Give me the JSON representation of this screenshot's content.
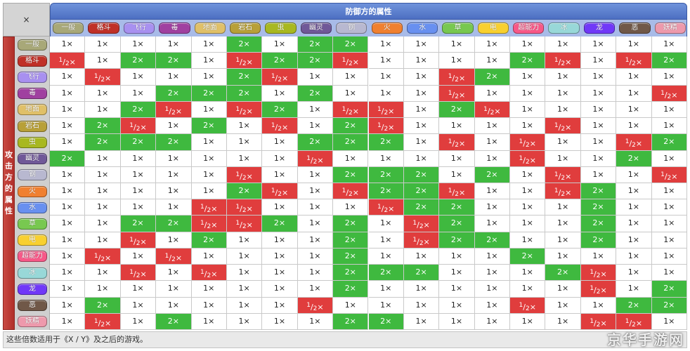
{
  "corner": {
    "label": "×"
  },
  "defender_title": "防御方的属性",
  "attacker_title": "攻击方的属性",
  "footer_note": "这些倍数适用于《X / Y》及之后的游戏。",
  "watermark": "京华手游网",
  "colors": {
    "super_effective": "#3fb93f",
    "not_very_effective": "#e03d3d",
    "no_effect": "#444444",
    "neutral": "#ffffff"
  },
  "types": [
    {
      "id": "normal",
      "name": "一般",
      "color": "#a8a878"
    },
    {
      "id": "fighting",
      "name": "格斗",
      "color": "#c03028"
    },
    {
      "id": "flying",
      "name": "飞行",
      "color": "#a890f0"
    },
    {
      "id": "poison",
      "name": "毒",
      "color": "#a040a0"
    },
    {
      "id": "ground",
      "name": "地面",
      "color": "#e0c068"
    },
    {
      "id": "rock",
      "name": "岩石",
      "color": "#b8a038"
    },
    {
      "id": "bug",
      "name": "虫",
      "color": "#a8b820"
    },
    {
      "id": "ghost",
      "name": "幽灵",
      "color": "#705898"
    },
    {
      "id": "steel",
      "name": "钢",
      "color": "#b8b8d0"
    },
    {
      "id": "fire",
      "name": "火",
      "color": "#f08030"
    },
    {
      "id": "water",
      "name": "水",
      "color": "#6890f0"
    },
    {
      "id": "grass",
      "name": "草",
      "color": "#78c850"
    },
    {
      "id": "electric",
      "name": "电",
      "color": "#f8d030"
    },
    {
      "id": "psychic",
      "name": "超能力",
      "color": "#f85888"
    },
    {
      "id": "ice",
      "name": "冰",
      "color": "#98d8d8"
    },
    {
      "id": "dragon",
      "name": "龙",
      "color": "#7038f8"
    },
    {
      "id": "dark",
      "name": "恶",
      "color": "#705848"
    },
    {
      "id": "fairy",
      "name": "妖精",
      "color": "#ee99ac"
    }
  ],
  "matrix": [
    [
      "1",
      "1",
      "1",
      "1",
      "1",
      "2",
      "1",
      "2",
      "2",
      "1",
      "1",
      "1",
      "1",
      "1",
      "1",
      "1",
      "1",
      "1"
    ],
    [
      "h",
      "1",
      "2",
      "2",
      "1",
      "h",
      "2",
      "2",
      "h",
      "1",
      "1",
      "1",
      "1",
      "2",
      "h",
      "1",
      "h",
      "2"
    ],
    [
      "1",
      "h",
      "1",
      "1",
      "1",
      "2",
      "h",
      "1",
      "1",
      "1",
      "1",
      "h",
      "2",
      "1",
      "1",
      "1",
      "1",
      "1"
    ],
    [
      "1",
      "1",
      "1",
      "2",
      "2",
      "2",
      "1",
      "2",
      "1",
      "1",
      "1",
      "h",
      "1",
      "1",
      "1",
      "1",
      "1",
      "h"
    ],
    [
      "1",
      "1",
      "2",
      "h",
      "1",
      "h",
      "2",
      "1",
      "h",
      "h",
      "1",
      "2",
      "h",
      "1",
      "1",
      "1",
      "1",
      "1"
    ],
    [
      "1",
      "2",
      "h",
      "1",
      "2",
      "1",
      "h",
      "1",
      "2",
      "h",
      "1",
      "1",
      "1",
      "1",
      "h",
      "1",
      "1",
      "1"
    ],
    [
      "1",
      "2",
      "2",
      "2",
      "1",
      "1",
      "1",
      "2",
      "2",
      "2",
      "1",
      "h",
      "1",
      "h",
      "1",
      "1",
      "h",
      "2"
    ],
    [
      "2",
      "1",
      "1",
      "1",
      "1",
      "1",
      "1",
      "h",
      "1",
      "1",
      "1",
      "1",
      "1",
      "h",
      "1",
      "1",
      "2",
      "1"
    ],
    [
      "1",
      "1",
      "1",
      "1",
      "1",
      "h",
      "1",
      "1",
      "2",
      "2",
      "2",
      "1",
      "2",
      "1",
      "h",
      "1",
      "1",
      "h"
    ],
    [
      "1",
      "1",
      "1",
      "1",
      "1",
      "2",
      "h",
      "1",
      "h",
      "2",
      "2",
      "h",
      "1",
      "1",
      "h",
      "2",
      "1",
      "1"
    ],
    [
      "1",
      "1",
      "1",
      "1",
      "h",
      "h",
      "1",
      "1",
      "1",
      "h",
      "2",
      "2",
      "1",
      "1",
      "1",
      "2",
      "1",
      "1"
    ],
    [
      "1",
      "1",
      "2",
      "2",
      "h",
      "h",
      "2",
      "1",
      "2",
      "1",
      "h",
      "2",
      "1",
      "1",
      "1",
      "2",
      "1",
      "1"
    ],
    [
      "1",
      "1",
      "h",
      "1",
      "2",
      "1",
      "1",
      "1",
      "2",
      "1",
      "h",
      "2",
      "2",
      "1",
      "1",
      "2",
      "1",
      "1"
    ],
    [
      "1",
      "h",
      "1",
      "h",
      "1",
      "1",
      "1",
      "1",
      "2",
      "1",
      "1",
      "1",
      "1",
      "2",
      "1",
      "1",
      "1",
      "1"
    ],
    [
      "1",
      "1",
      "h",
      "1",
      "h",
      "1",
      "1",
      "1",
      "2",
      "2",
      "2",
      "1",
      "1",
      "1",
      "2",
      "h",
      "1",
      "1"
    ],
    [
      "1",
      "1",
      "1",
      "1",
      "1",
      "1",
      "1",
      "1",
      "2",
      "1",
      "1",
      "1",
      "1",
      "1",
      "1",
      "h",
      "1",
      "2"
    ],
    [
      "1",
      "2",
      "1",
      "1",
      "1",
      "1",
      "1",
      "h",
      "1",
      "1",
      "1",
      "1",
      "1",
      "h",
      "1",
      "1",
      "2",
      "2"
    ],
    [
      "1",
      "h",
      "1",
      "2",
      "1",
      "1",
      "1",
      "1",
      "2",
      "2",
      "1",
      "1",
      "1",
      "1",
      "1",
      "h",
      "h",
      "1"
    ]
  ]
}
